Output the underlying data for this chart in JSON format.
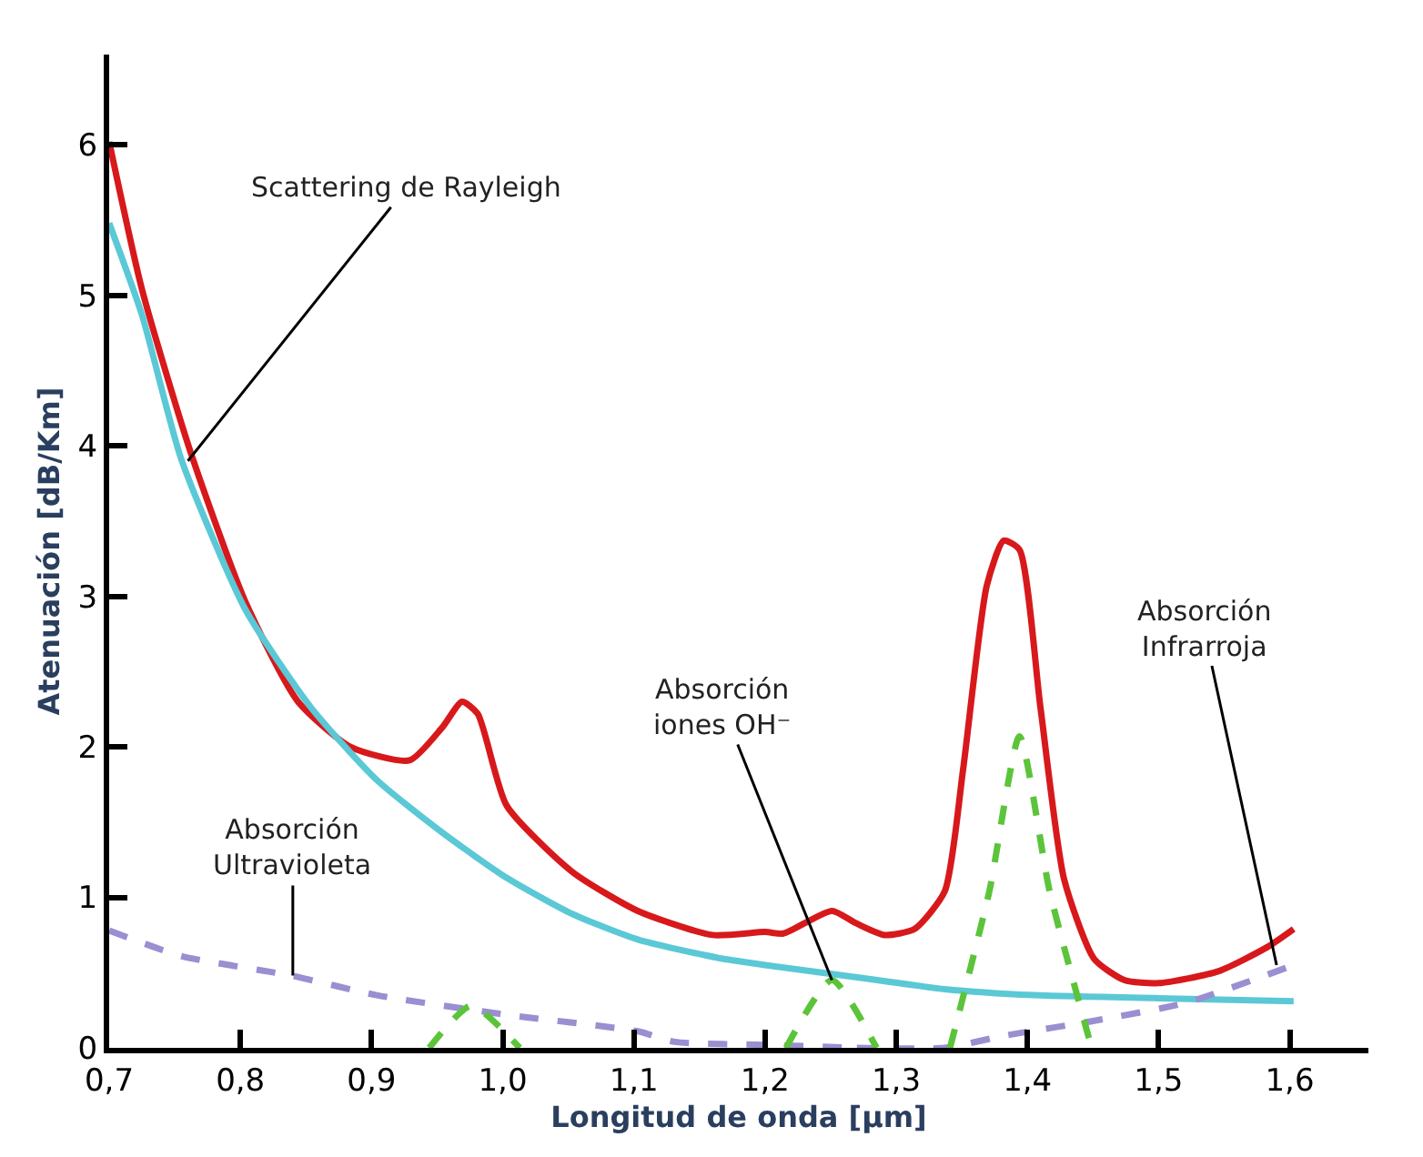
{
  "chart_data": {
    "type": "line",
    "xlabel": "Longitud de onda [µm]",
    "ylabel": "Atenuación [dB/Km]",
    "xlim": [
      0.7,
      1.66
    ],
    "ylim": [
      0,
      6.6
    ],
    "xticks": [
      {
        "value": 0.7,
        "label": "0,7"
      },
      {
        "value": 0.8,
        "label": "0,8"
      },
      {
        "value": 0.9,
        "label": "0,9"
      },
      {
        "value": 1.0,
        "label": "1,0"
      },
      {
        "value": 1.1,
        "label": "1,1"
      },
      {
        "value": 1.2,
        "label": "1,2"
      },
      {
        "value": 1.3,
        "label": "1,3"
      },
      {
        "value": 1.4,
        "label": "1,4"
      },
      {
        "value": 1.5,
        "label": "1,5"
      },
      {
        "value": 1.6,
        "label": "1,6"
      }
    ],
    "yticks": [
      0,
      1,
      2,
      3,
      4,
      5,
      6
    ],
    "marker": "none",
    "series": [
      {
        "color": "#d7191c",
        "line_style": "solid",
        "x": [
          0.7,
          0.725,
          0.762,
          0.804,
          0.844,
          0.884,
          0.929,
          0.954,
          0.969,
          0.981,
          1.003,
          1.053,
          1.103,
          1.16,
          1.2,
          1.214,
          1.251,
          1.269,
          1.291,
          1.314,
          1.337,
          1.351,
          1.369,
          1.382,
          1.394,
          1.41,
          1.428,
          1.451,
          1.474,
          1.5,
          1.546,
          1.583,
          1.603
        ],
        "values": [
          6.02,
          5.04,
          3.96,
          2.96,
          2.3,
          2.0,
          1.91,
          2.13,
          2.3,
          2.22,
          1.61,
          1.17,
          0.91,
          0.75,
          0.77,
          0.76,
          0.91,
          0.83,
          0.75,
          0.79,
          1.04,
          1.85,
          3.07,
          3.37,
          3.31,
          2.26,
          1.12,
          0.59,
          0.45,
          0.43,
          0.51,
          0.67,
          0.79
        ]
      },
      {
        "color": "#5bc8d6",
        "line_style": "solid",
        "x": [
          0.7,
          0.725,
          0.755,
          0.804,
          0.854,
          0.904,
          0.954,
          1.003,
          1.053,
          1.103,
          1.163,
          1.2,
          1.269,
          1.337,
          1.405,
          1.5,
          1.603
        ],
        "values": [
          5.48,
          4.87,
          3.91,
          2.91,
          2.26,
          1.78,
          1.43,
          1.13,
          0.89,
          0.72,
          0.6,
          0.55,
          0.47,
          0.39,
          0.35,
          0.33,
          0.31
        ]
      },
      {
        "color": "#9a8fd0",
        "line_style": "dashed",
        "x": [
          0.7,
          0.755,
          0.839,
          0.904,
          1.003,
          1.103,
          1.131,
          1.2,
          1.27
        ],
        "values": [
          0.78,
          0.61,
          0.48,
          0.35,
          0.22,
          0.11,
          0.04,
          0.02,
          0.0
        ]
      },
      {
        "color": "#9a8fd0",
        "line_style": "dashed",
        "x": [
          1.27,
          1.337,
          1.382,
          1.451,
          1.521,
          1.603
        ],
        "values": [
          0.0,
          0.0,
          0.08,
          0.18,
          0.3,
          0.55
        ]
      },
      {
        "color": "#5cc43a",
        "line_style": "dashed",
        "x": [
          0.944,
          0.976,
          1.013,
          1.1,
          1.216,
          1.251,
          1.285,
          1.31,
          1.341,
          1.371,
          1.394,
          1.417,
          1.449
        ],
        "values": [
          0.0,
          0.28,
          0.0,
          null,
          0.0,
          0.45,
          0.0,
          null,
          0.0,
          1.04,
          2.07,
          1.04,
          0.0
        ]
      }
    ],
    "annotations": [
      {
        "text": "Scattering de Rayleigh",
        "x": 0.76,
        "y": 3.9
      },
      {
        "text": "Absorción\nUltravioleta",
        "x": 0.84,
        "y": 0.48
      },
      {
        "text": "Absorción\niones OH⁻",
        "x": 1.251,
        "y": 0.45
      },
      {
        "text": "Absorción\nInfrarroja",
        "x": 1.59,
        "y": 0.55
      }
    ]
  }
}
